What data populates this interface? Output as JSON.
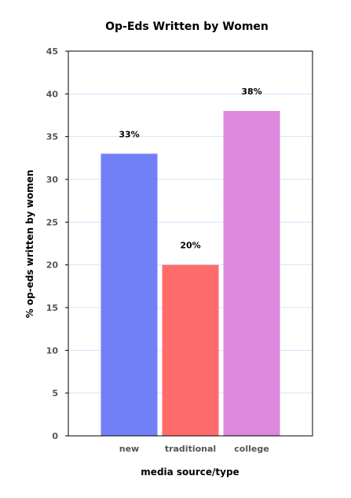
{
  "chart_data": {
    "type": "bar",
    "title": "Op-Eds Written by Women",
    "xlabel": "media source/type",
    "ylabel": "% op-eds written by women",
    "categories": [
      "new",
      "traditional",
      "college"
    ],
    "values": [
      33,
      20,
      38
    ],
    "data_labels": [
      "33%",
      "20%",
      "38%"
    ],
    "colors": [
      "#7280f8",
      "#ff6b6b",
      "#dd88dd"
    ],
    "ylim": [
      0,
      45
    ],
    "yticks": [
      0,
      5,
      10,
      15,
      20,
      25,
      30,
      35,
      40,
      45
    ],
    "grid": true,
    "grid_color": "#cfe6fb",
    "legend": false
  }
}
